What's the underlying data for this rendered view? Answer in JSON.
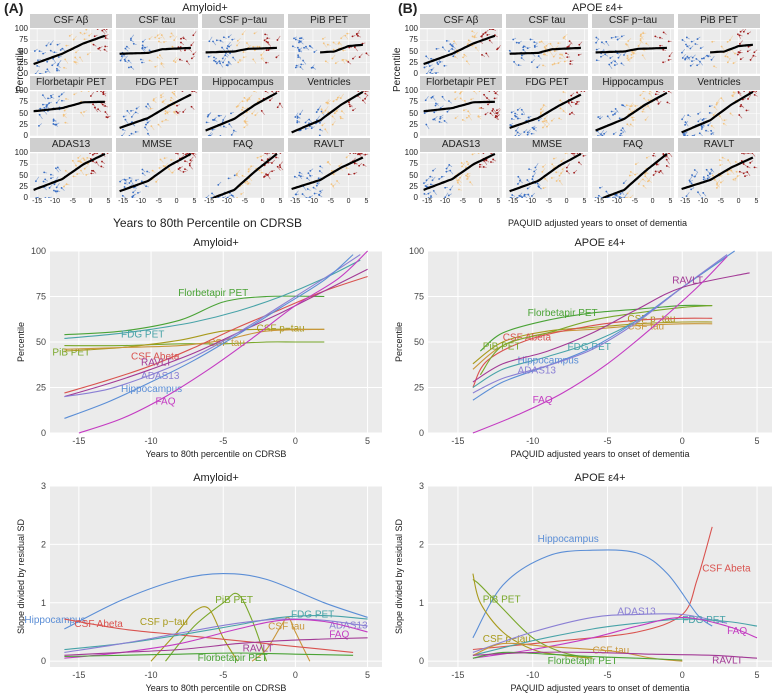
{
  "panel_labels": {
    "a": "(A)",
    "b": "(B)"
  },
  "small_multiples": {
    "left": {
      "title": "Amyloid+",
      "xlabel": "Years to 80th Percentile on CDRSB",
      "ylabel": "Percentile",
      "x_ticks": [
        "-15",
        "-10",
        "-5",
        "0",
        "5"
      ],
      "y_ticks": [
        "0",
        "25",
        "50",
        "75",
        "100"
      ]
    },
    "right": {
      "title": "APOE ε4+",
      "xlabel": "PAQUID adjusted years to onset of dementia",
      "ylabel": "Percentile",
      "x_ticks": [
        "-15",
        "-10",
        "-5",
        "0",
        "5"
      ],
      "y_ticks": [
        "0",
        "25",
        "50",
        "75",
        "100"
      ]
    },
    "facet_titles": [
      "CSF Aβ",
      "CSF tau",
      "CSF p−tau",
      "PiB PET",
      "Florbetapir PET",
      "FDG PET",
      "Hippocampus",
      "Ventricles",
      "ADAS13",
      "MMSE",
      "FAQ",
      "RAVLT"
    ]
  },
  "colors": {
    "early": "#3a6fc4",
    "mid": "#f2c27e",
    "late": "#9e1b1b",
    "fit": "#000000",
    "ribbon": "#9a9a9a",
    "panel_bg": "#ebebeb",
    "strip_bg": "#cfcfcf"
  },
  "chart_data": [
    {
      "type": "line",
      "title": "Amyloid+",
      "xlabel": "Years to 80th percentile on CDRSB",
      "ylabel": "Percentile",
      "xlim": [
        -17,
        6
      ],
      "ylim": [
        0,
        100
      ],
      "x_ticks": [
        "-15",
        "-10",
        "-5",
        "0",
        "5"
      ],
      "y_ticks": [
        "0",
        "25",
        "50",
        "75",
        "100"
      ],
      "series": [
        {
          "name": "Florbetapir PET",
          "color": "#4aa336",
          "x": [
            -16,
            -12,
            -8,
            -5,
            -2,
            2
          ],
          "values": [
            54,
            56,
            62,
            72,
            75,
            75
          ]
        },
        {
          "name": "PiB PET",
          "color": "#7aa82b",
          "x": [
            -16,
            -12,
            -8,
            -5,
            -2,
            0,
            2
          ],
          "values": [
            48,
            48,
            49,
            49,
            50,
            50,
            50
          ]
        },
        {
          "name": "CSF p−tau",
          "color": "#a89a1c",
          "x": [
            -16,
            -12,
            -8,
            -5,
            -2,
            2
          ],
          "values": [
            45,
            47,
            51,
            56,
            57,
            57
          ]
        },
        {
          "name": "CSF tau",
          "color": "#c9963a",
          "x": [
            -16,
            -12,
            -8,
            -5,
            -2,
            2
          ],
          "values": [
            46,
            47,
            48,
            51,
            56,
            57
          ]
        },
        {
          "name": "FDG PET",
          "color": "#48a3a8",
          "x": [
            -16,
            -13,
            -10,
            -7,
            -4,
            -1,
            2,
            4.5
          ],
          "values": [
            52,
            54,
            57,
            61,
            67,
            75,
            85,
            95
          ]
        },
        {
          "name": "CSF Abeta",
          "color": "#d9534f",
          "x": [
            -16,
            -13,
            -10,
            -7,
            -4,
            -1,
            2,
            5
          ],
          "values": [
            22,
            29,
            37,
            47,
            58,
            68,
            78,
            86
          ]
        },
        {
          "name": "RAVLT",
          "color": "#a33a96",
          "x": [
            -16,
            -13,
            -10,
            -7,
            -4,
            -1,
            2,
            5
          ],
          "values": [
            20,
            27,
            35,
            44,
            55,
            66,
            78,
            90
          ]
        },
        {
          "name": "ADAS13",
          "color": "#8a7fd4",
          "x": [
            -16,
            -13,
            -10,
            -7,
            -4,
            -1,
            2,
            4.5
          ],
          "values": [
            20,
            24,
            32,
            42,
            55,
            70,
            85,
            98
          ]
        },
        {
          "name": "Hippocampus",
          "color": "#5b8ed6",
          "x": [
            -16,
            -13,
            -10,
            -7,
            -4,
            -1,
            2,
            4
          ],
          "values": [
            8,
            17,
            28,
            40,
            54,
            69,
            84,
            98
          ]
        },
        {
          "name": "FAQ",
          "color": "#c43bc2",
          "x": [
            -15,
            -12,
            -9,
            -6,
            -3,
            0,
            3,
            5
          ],
          "values": [
            0,
            8,
            20,
            35,
            52,
            70,
            85,
            100
          ]
        }
      ]
    },
    {
      "type": "line",
      "title": "APOE ε4+",
      "xlabel": "PAQUID adjusted years to onset of dementia",
      "ylabel": "Percentile",
      "xlim": [
        -17,
        6
      ],
      "ylim": [
        0,
        100
      ],
      "x_ticks": [
        "-15",
        "-10",
        "-5",
        "0",
        "5"
      ],
      "y_ticks": [
        "0",
        "25",
        "50",
        "75",
        "100"
      ],
      "series": [
        {
          "name": "CSF p−tau",
          "color": "#a89a1c",
          "x": [
            -14,
            -12,
            -9,
            -6,
            -3,
            0,
            2
          ],
          "values": [
            38,
            50,
            56,
            58,
            60,
            61,
            61
          ]
        },
        {
          "name": "CSF tau",
          "color": "#c9963a",
          "x": [
            -14,
            -12,
            -9,
            -6,
            -3,
            0,
            2
          ],
          "values": [
            35,
            48,
            55,
            57,
            59,
            60,
            60
          ]
        },
        {
          "name": "Florbetapir PET",
          "color": "#4aa336",
          "x": [
            -13.5,
            -12,
            -9,
            -6,
            -3,
            0,
            2
          ],
          "values": [
            45,
            55,
            62,
            66,
            68,
            70,
            70
          ]
        },
        {
          "name": "CSF Abeta",
          "color": "#d9534f",
          "x": [
            -14,
            -13,
            -10,
            -6,
            -3,
            0,
            2
          ],
          "values": [
            25,
            40,
            52,
            59,
            62,
            63,
            63
          ]
        },
        {
          "name": "PiB PET",
          "color": "#7aa82b",
          "x": [
            -13.5,
            -12,
            -9,
            -6,
            -3,
            0,
            2
          ],
          "values": [
            32,
            48,
            55,
            62,
            66,
            69,
            70
          ]
        },
        {
          "name": "FDG PET",
          "color": "#48a3a8",
          "x": [
            -14,
            -12,
            -9,
            -6,
            -3,
            0,
            3
          ],
          "values": [
            25,
            35,
            42,
            50,
            62,
            80,
            97
          ]
        },
        {
          "name": "Hippocampus",
          "color": "#5b8ed6",
          "x": [
            -14,
            -12,
            -9,
            -6,
            -3,
            0,
            3.5
          ],
          "values": [
            18,
            28,
            37,
            47,
            62,
            80,
            100
          ]
        },
        {
          "name": "ADAS13",
          "color": "#8a7fd4",
          "x": [
            -14,
            -12,
            -9,
            -6,
            -3,
            0,
            3
          ],
          "values": [
            22,
            30,
            37,
            46,
            61,
            80,
            98
          ]
        },
        {
          "name": "RAVLT",
          "color": "#a33a96",
          "x": [
            -14,
            -12,
            -9,
            -6,
            -3,
            0,
            4.5
          ],
          "values": [
            28,
            38,
            45,
            55,
            68,
            80,
            88
          ]
        },
        {
          "name": "FAQ",
          "color": "#c43bc2",
          "x": [
            -14,
            -11,
            -8,
            -5,
            -2,
            1,
            3
          ],
          "values": [
            0,
            10,
            22,
            38,
            58,
            80,
            97
          ]
        }
      ]
    },
    {
      "type": "line",
      "title": "Amyloid+",
      "xlabel": "Years to 80th percentile on CDRSB",
      "ylabel": "Slope divided by residual SD",
      "xlim": [
        -17,
        6
      ],
      "ylim": [
        -0.1,
        3
      ],
      "x_ticks": [
        "-15",
        "-10",
        "-5",
        "0",
        "5"
      ],
      "y_ticks": [
        "0",
        "1",
        "2",
        "3"
      ],
      "series": [
        {
          "name": "Hippocampus",
          "color": "#5b8ed6",
          "x": [
            -16,
            -12,
            -8,
            -5,
            -2,
            2,
            5
          ],
          "values": [
            0.55,
            1.05,
            1.4,
            1.5,
            1.4,
            1.0,
            0.75
          ]
        },
        {
          "name": "PiB PET",
          "color": "#7aa82b",
          "x": [
            -9,
            -7,
            -5,
            -4,
            -3,
            -2
          ],
          "values": [
            0.0,
            0.6,
            1.0,
            1.15,
            0.7,
            0.0
          ]
        },
        {
          "name": "CSF p−tau",
          "color": "#a89a1c",
          "x": [
            -10,
            -8,
            -7,
            -6,
            -5,
            -4
          ],
          "values": [
            0.0,
            0.55,
            0.85,
            0.9,
            0.4,
            0.0
          ]
        },
        {
          "name": "CSF tau",
          "color": "#c9963a",
          "x": [
            -3,
            -2,
            -1,
            -0.5,
            0,
            1
          ],
          "values": [
            0.0,
            0.2,
            0.6,
            0.75,
            0.5,
            0.0
          ]
        },
        {
          "name": "CSF Abeta",
          "color": "#d9534f",
          "x": [
            -16,
            -12,
            -8,
            -4,
            0,
            4
          ],
          "values": [
            0.72,
            0.55,
            0.45,
            0.35,
            0.25,
            0.15
          ]
        },
        {
          "name": "FDG PET",
          "color": "#48a3a8",
          "x": [
            -16,
            -12,
            -8,
            -4,
            -1,
            2,
            5
          ],
          "values": [
            0.2,
            0.3,
            0.45,
            0.62,
            0.75,
            0.78,
            0.72
          ]
        },
        {
          "name": "ADAS13",
          "color": "#8a7fd4",
          "x": [
            -16,
            -12,
            -8,
            -4,
            -1,
            2,
            5
          ],
          "values": [
            0.15,
            0.3,
            0.48,
            0.65,
            0.72,
            0.7,
            0.6
          ]
        },
        {
          "name": "FAQ",
          "color": "#c43bc2",
          "x": [
            -16,
            -12,
            -8,
            -4,
            -1,
            2,
            5
          ],
          "values": [
            0.05,
            0.15,
            0.3,
            0.55,
            0.7,
            0.68,
            0.5
          ]
        },
        {
          "name": "RAVLT",
          "color": "#a33a96",
          "x": [
            -16,
            -12,
            -8,
            -4,
            -1,
            2,
            5
          ],
          "values": [
            0.1,
            0.15,
            0.2,
            0.3,
            0.35,
            0.38,
            0.4
          ]
        },
        {
          "name": "Florbetapir PET",
          "color": "#4aa336",
          "x": [
            -16,
            -12,
            -8,
            -4,
            0,
            4
          ],
          "values": [
            0.08,
            0.1,
            0.12,
            0.14,
            0.12,
            0.1
          ]
        }
      ]
    },
    {
      "type": "line",
      "title": "APOE ε4+",
      "xlabel": "PAQUID adjusted years to onset of dementia",
      "ylabel": "Slope divided by residual SD",
      "xlim": [
        -17,
        6
      ],
      "ylim": [
        -0.1,
        3
      ],
      "x_ticks": [
        "-15",
        "-10",
        "-5",
        "0",
        "5"
      ],
      "y_ticks": [
        "0",
        "1",
        "2",
        "3"
      ],
      "series": [
        {
          "name": "CSF Abeta",
          "color": "#d9534f",
          "x": [
            -14,
            -8,
            -3,
            0,
            1,
            2
          ],
          "values": [
            0.2,
            0.35,
            0.5,
            0.8,
            1.4,
            2.3
          ]
        },
        {
          "name": "Hippocampus",
          "color": "#5b8ed6",
          "x": [
            -14,
            -12,
            -9,
            -6,
            -3,
            -1,
            1,
            2
          ],
          "values": [
            0.4,
            1.3,
            1.8,
            1.9,
            1.85,
            1.5,
            0.8,
            0.6
          ]
        },
        {
          "name": "PiB PET",
          "color": "#7aa82b",
          "x": [
            -14,
            -13.5,
            -12,
            -10,
            -8,
            -6
          ],
          "values": [
            1.4,
            1.3,
            0.9,
            0.4,
            0.15,
            0.05
          ]
        },
        {
          "name": "CSF p−tau",
          "color": "#a89a1c",
          "x": [
            -14,
            -13.5,
            -12,
            -10,
            -8,
            -6
          ],
          "values": [
            1.5,
            1.0,
            0.5,
            0.2,
            0.1,
            0.05
          ]
        },
        {
          "name": "ADAS13",
          "color": "#8a7fd4",
          "x": [
            -14,
            -10,
            -6,
            -3,
            0,
            3
          ],
          "values": [
            0.15,
            0.5,
            0.75,
            0.8,
            0.8,
            0.65
          ]
        },
        {
          "name": "FDG PET",
          "color": "#48a3a8",
          "x": [
            -14,
            -10,
            -6,
            -3,
            0,
            3,
            5
          ],
          "values": [
            0.1,
            0.35,
            0.55,
            0.65,
            0.72,
            0.68,
            0.6
          ]
        },
        {
          "name": "FAQ",
          "color": "#c43bc2",
          "x": [
            -14,
            -10,
            -6,
            -3,
            0,
            3,
            5
          ],
          "values": [
            0.05,
            0.2,
            0.4,
            0.6,
            0.75,
            0.6,
            0.4
          ]
        },
        {
          "name": "CSF tau",
          "color": "#c9963a",
          "x": [
            -14,
            -12,
            -9,
            -6,
            -4,
            -2,
            0
          ],
          "values": [
            0.1,
            0.3,
            0.25,
            0.2,
            0.15,
            0.05,
            0.0
          ]
        },
        {
          "name": "Florbetapir PET",
          "color": "#4aa336",
          "x": [
            -14,
            -12,
            -9,
            -6,
            -3,
            0
          ],
          "values": [
            0.05,
            0.15,
            0.12,
            0.08,
            0.05,
            0.02
          ]
        },
        {
          "name": "RAVLT",
          "color": "#a33a96",
          "x": [
            -14,
            -10,
            -6,
            -2,
            2,
            5
          ],
          "values": [
            0.1,
            0.15,
            0.15,
            0.12,
            0.1,
            0.05
          ]
        }
      ]
    }
  ]
}
